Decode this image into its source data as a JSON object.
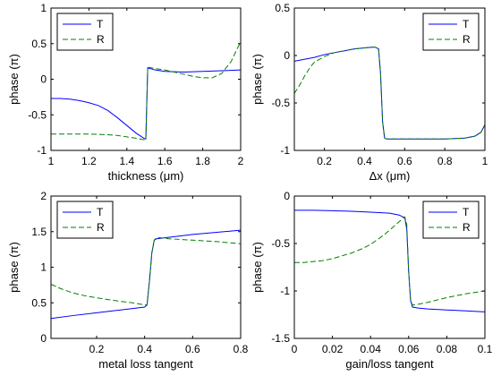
{
  "chart_data": [
    {
      "type": "line",
      "xlabel": "thickness (μm)",
      "ylabel": "phase (π)",
      "xlim": [
        1,
        2
      ],
      "ylim": [
        -1,
        1
      ],
      "xticks": [
        1,
        1.2,
        1.4,
        1.6,
        1.8,
        2
      ],
      "yticks": [
        -1,
        -0.5,
        0,
        0.5,
        1
      ],
      "xtick_labels": [
        "1",
        "1.2",
        "1.4",
        "1.6",
        "1.8",
        "2"
      ],
      "ytick_labels": [
        "-1",
        "-0.5",
        "0",
        "0.5",
        "1"
      ],
      "legend_position": "top-left",
      "series": [
        {
          "name": "T",
          "color": "#0000ff",
          "dash": "solid",
          "x": [
            1.0,
            1.05,
            1.1,
            1.15,
            1.2,
            1.25,
            1.3,
            1.35,
            1.4,
            1.45,
            1.49,
            1.5,
            1.51,
            1.55,
            1.6,
            1.7,
            1.8,
            1.9,
            2.0
          ],
          "y": [
            -0.27,
            -0.27,
            -0.28,
            -0.3,
            -0.33,
            -0.37,
            -0.44,
            -0.54,
            -0.65,
            -0.76,
            -0.83,
            -0.84,
            0.16,
            0.13,
            0.11,
            0.1,
            0.11,
            0.12,
            0.13
          ]
        },
        {
          "name": "R",
          "color": "#008000",
          "dash": "dashed",
          "x": [
            1.0,
            1.1,
            1.2,
            1.3,
            1.35,
            1.4,
            1.45,
            1.49,
            1.5,
            1.51,
            1.55,
            1.6,
            1.65,
            1.7,
            1.75,
            1.8,
            1.85,
            1.9,
            1.95,
            2.0
          ],
          "y": [
            -0.77,
            -0.77,
            -0.77,
            -0.78,
            -0.79,
            -0.81,
            -0.83,
            -0.85,
            -0.86,
            0.17,
            0.15,
            0.13,
            0.1,
            0.07,
            0.04,
            0.02,
            0.02,
            0.08,
            0.25,
            0.53
          ]
        }
      ]
    },
    {
      "type": "line",
      "xlabel": "Δx (μm)",
      "ylabel": "phase (π)",
      "xlim": [
        0.05,
        1
      ],
      "ylim": [
        -1,
        0.5
      ],
      "xticks": [
        0.2,
        0.4,
        0.6,
        0.8,
        1
      ],
      "yticks": [
        -1,
        -0.5,
        0,
        0.5
      ],
      "xtick_labels": [
        "0.2",
        "0.4",
        "0.6",
        "0.8",
        "1"
      ],
      "ytick_labels": [
        "-1",
        "-0.5",
        "0",
        "0.5"
      ],
      "legend_position": "top-right",
      "series": [
        {
          "name": "T",
          "color": "#0000ff",
          "dash": "solid",
          "x": [
            0.05,
            0.1,
            0.15,
            0.2,
            0.25,
            0.3,
            0.35,
            0.4,
            0.45,
            0.47,
            0.48,
            0.49,
            0.5,
            0.51,
            0.6,
            0.7,
            0.8,
            0.9,
            0.95,
            0.98,
            1.0
          ],
          "y": [
            -0.06,
            -0.04,
            -0.02,
            0.01,
            0.03,
            0.05,
            0.07,
            0.08,
            0.09,
            0.07,
            -0.2,
            -0.7,
            -0.87,
            -0.88,
            -0.88,
            -0.88,
            -0.88,
            -0.87,
            -0.85,
            -0.81,
            -0.73
          ]
        },
        {
          "name": "R",
          "color": "#008000",
          "dash": "dashed",
          "x": [
            0.05,
            0.08,
            0.1,
            0.13,
            0.15,
            0.2,
            0.25,
            0.3,
            0.35,
            0.4,
            0.45,
            0.47,
            0.48,
            0.49,
            0.5,
            0.51,
            0.6,
            0.7,
            0.8,
            0.9,
            0.95,
            0.98,
            1.0
          ],
          "y": [
            -0.4,
            -0.3,
            -0.22,
            -0.12,
            -0.07,
            -0.01,
            0.03,
            0.05,
            0.07,
            0.08,
            0.09,
            0.07,
            -0.2,
            -0.7,
            -0.87,
            -0.88,
            -0.88,
            -0.88,
            -0.88,
            -0.87,
            -0.85,
            -0.81,
            -0.73
          ]
        }
      ]
    },
    {
      "type": "line",
      "xlabel": "metal loss tangent",
      "ylabel": "phase (π)",
      "xlim": [
        0.01,
        0.8
      ],
      "ylim": [
        0,
        2
      ],
      "xticks": [
        0.2,
        0.4,
        0.6,
        0.8
      ],
      "yticks": [
        0,
        0.5,
        1,
        1.5,
        2
      ],
      "xtick_labels": [
        "0.2",
        "0.4",
        "0.6",
        "0.8"
      ],
      "ytick_labels": [
        "0",
        "0.5",
        "1",
        "1.5",
        "2"
      ],
      "legend_position": "top-left",
      "series": [
        {
          "name": "T",
          "color": "#0000ff",
          "dash": "solid",
          "x": [
            0.01,
            0.1,
            0.2,
            0.3,
            0.4,
            0.41,
            0.42,
            0.43,
            0.44,
            0.45,
            0.5,
            0.6,
            0.7,
            0.8
          ],
          "y": [
            0.28,
            0.32,
            0.36,
            0.4,
            0.44,
            0.47,
            0.8,
            1.2,
            1.38,
            1.4,
            1.42,
            1.46,
            1.49,
            1.52
          ]
        },
        {
          "name": "R",
          "color": "#008000",
          "dash": "dashed",
          "x": [
            0.01,
            0.05,
            0.1,
            0.15,
            0.2,
            0.3,
            0.35,
            0.4,
            0.41,
            0.42,
            0.43,
            0.44,
            0.45,
            0.5,
            0.6,
            0.7,
            0.8
          ],
          "y": [
            0.76,
            0.7,
            0.64,
            0.6,
            0.57,
            0.52,
            0.5,
            0.47,
            0.47,
            0.8,
            1.2,
            1.38,
            1.42,
            1.4,
            1.38,
            1.36,
            1.33
          ]
        }
      ]
    },
    {
      "type": "line",
      "xlabel": "gain/loss tangent",
      "ylabel": "phase (π)",
      "xlim": [
        0,
        0.1
      ],
      "ylim": [
        -1.5,
        0
      ],
      "xticks": [
        0,
        0.02,
        0.04,
        0.06,
        0.08,
        0.1
      ],
      "yticks": [
        -1.5,
        -1,
        -0.5,
        0
      ],
      "xtick_labels": [
        "0",
        "0.02",
        "0.04",
        "0.06",
        "0.08",
        "0.1"
      ],
      "ytick_labels": [
        "-1.5",
        "-1",
        "-0.5",
        "0"
      ],
      "legend_position": "top-right",
      "series": [
        {
          "name": "T",
          "color": "#0000ff",
          "dash": "solid",
          "x": [
            0,
            0.01,
            0.02,
            0.03,
            0.04,
            0.05,
            0.055,
            0.058,
            0.059,
            0.06,
            0.061,
            0.062,
            0.065,
            0.07,
            0.08,
            0.09,
            0.1
          ],
          "y": [
            -0.15,
            -0.15,
            -0.155,
            -0.16,
            -0.17,
            -0.18,
            -0.2,
            -0.23,
            -0.35,
            -0.8,
            -1.1,
            -1.17,
            -1.18,
            -1.19,
            -1.2,
            -1.21,
            -1.22
          ]
        },
        {
          "name": "R",
          "color": "#008000",
          "dash": "dashed",
          "x": [
            0,
            0.005,
            0.01,
            0.015,
            0.02,
            0.025,
            0.03,
            0.035,
            0.04,
            0.045,
            0.05,
            0.055,
            0.058,
            0.059,
            0.06,
            0.061,
            0.062,
            0.065,
            0.07,
            0.08,
            0.09,
            0.1
          ],
          "y": [
            -0.7,
            -0.7,
            -0.69,
            -0.68,
            -0.66,
            -0.63,
            -0.6,
            -0.56,
            -0.51,
            -0.44,
            -0.36,
            -0.27,
            -0.22,
            -0.3,
            -0.8,
            -1.1,
            -1.15,
            -1.14,
            -1.12,
            -1.07,
            -1.03,
            -1.0
          ]
        }
      ]
    }
  ]
}
